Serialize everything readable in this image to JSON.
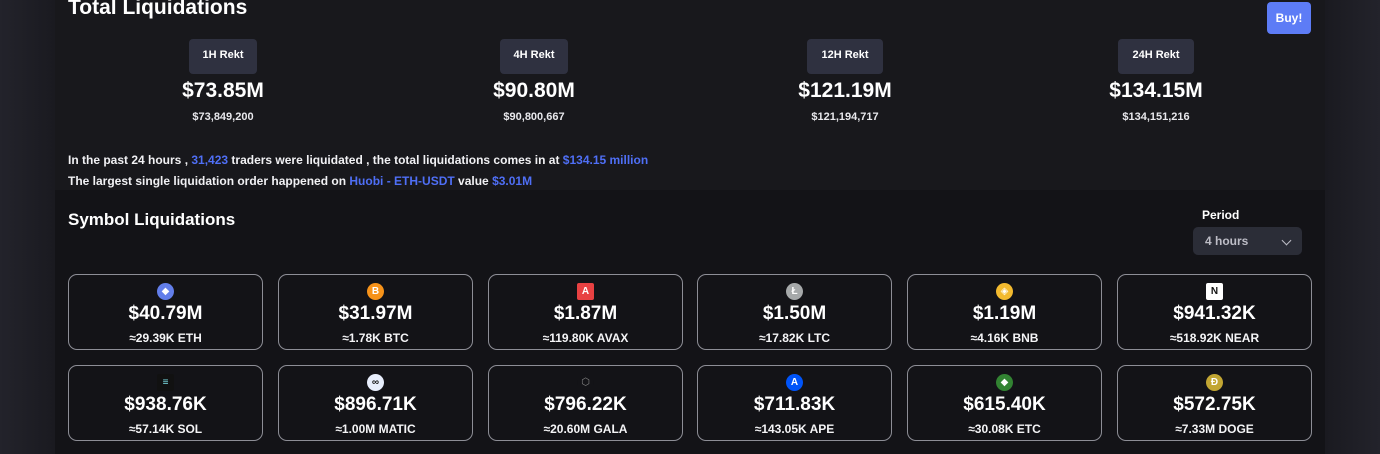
{
  "header": {
    "title": "Total Liquidations",
    "buy_label": "Buy!"
  },
  "stats": [
    {
      "label": "1H Rekt",
      "amount": "$73.85M",
      "exact": "$73,849,200"
    },
    {
      "label": "4H Rekt",
      "amount": "$90.80M",
      "exact": "$90,800,667"
    },
    {
      "label": "12H Rekt",
      "amount": "$121.19M",
      "exact": "$121,194,717"
    },
    {
      "label": "24H Rekt",
      "amount": "$134.15M",
      "exact": "$134,151,216"
    }
  ],
  "summary": {
    "line1_a": "In the past 24 hours , ",
    "traders": "31,423",
    "line1_b": " traders were liquidated , the total liquidations comes in at ",
    "total": "$134.15 million",
    "line2_a": "The largest single liquidation order happened on ",
    "exchange": "Huobi - ETH-USDT",
    "line2_b": " value ",
    "value": "$3.01M"
  },
  "symbols": {
    "title": "Symbol Liquidations",
    "period_label": "Period",
    "period_value": "4 hours",
    "cards": [
      {
        "amount": "$40.79M",
        "sub": "≈29.39K ETH",
        "icon": "eth-icon",
        "color": "#627eea",
        "glyph": "◆"
      },
      {
        "amount": "$31.97M",
        "sub": "≈1.78K BTC",
        "icon": "btc-icon",
        "color": "#f7931a",
        "glyph": "B"
      },
      {
        "amount": "$1.87M",
        "sub": "≈119.80K AVAX",
        "icon": "avax-icon",
        "color": "#e84142",
        "glyph": "A"
      },
      {
        "amount": "$1.50M",
        "sub": "≈17.82K LTC",
        "icon": "ltc-icon",
        "color": "#a6a9aa",
        "glyph": "Ł"
      },
      {
        "amount": "$1.19M",
        "sub": "≈4.16K BNB",
        "icon": "bnb-icon",
        "color": "#f3ba2f",
        "glyph": "◈"
      },
      {
        "amount": "$941.32K",
        "sub": "≈518.92K NEAR",
        "icon": "near-icon",
        "color": "#ffffff",
        "glyph": "N"
      },
      {
        "amount": "$938.76K",
        "sub": "≈57.14K SOL",
        "icon": "sol-icon",
        "color": "#111111",
        "glyph": "≡"
      },
      {
        "amount": "$896.71K",
        "sub": "≈1.00M MATIC",
        "icon": "matic-icon",
        "color": "#e8eefc",
        "glyph": "∞"
      },
      {
        "amount": "$796.22K",
        "sub": "≈20.60M GALA",
        "icon": "gala-icon",
        "color": "#131317",
        "glyph": "⬡"
      },
      {
        "amount": "$711.83K",
        "sub": "≈143.05K APE",
        "icon": "ape-icon",
        "color": "#0054f9",
        "glyph": "A"
      },
      {
        "amount": "$615.40K",
        "sub": "≈30.08K ETC",
        "icon": "etc-icon",
        "color": "#328332",
        "glyph": "◆"
      },
      {
        "amount": "$572.75K",
        "sub": "≈7.33M DOGE",
        "icon": "doge-icon",
        "color": "#c2a633",
        "glyph": "Ð"
      }
    ]
  }
}
